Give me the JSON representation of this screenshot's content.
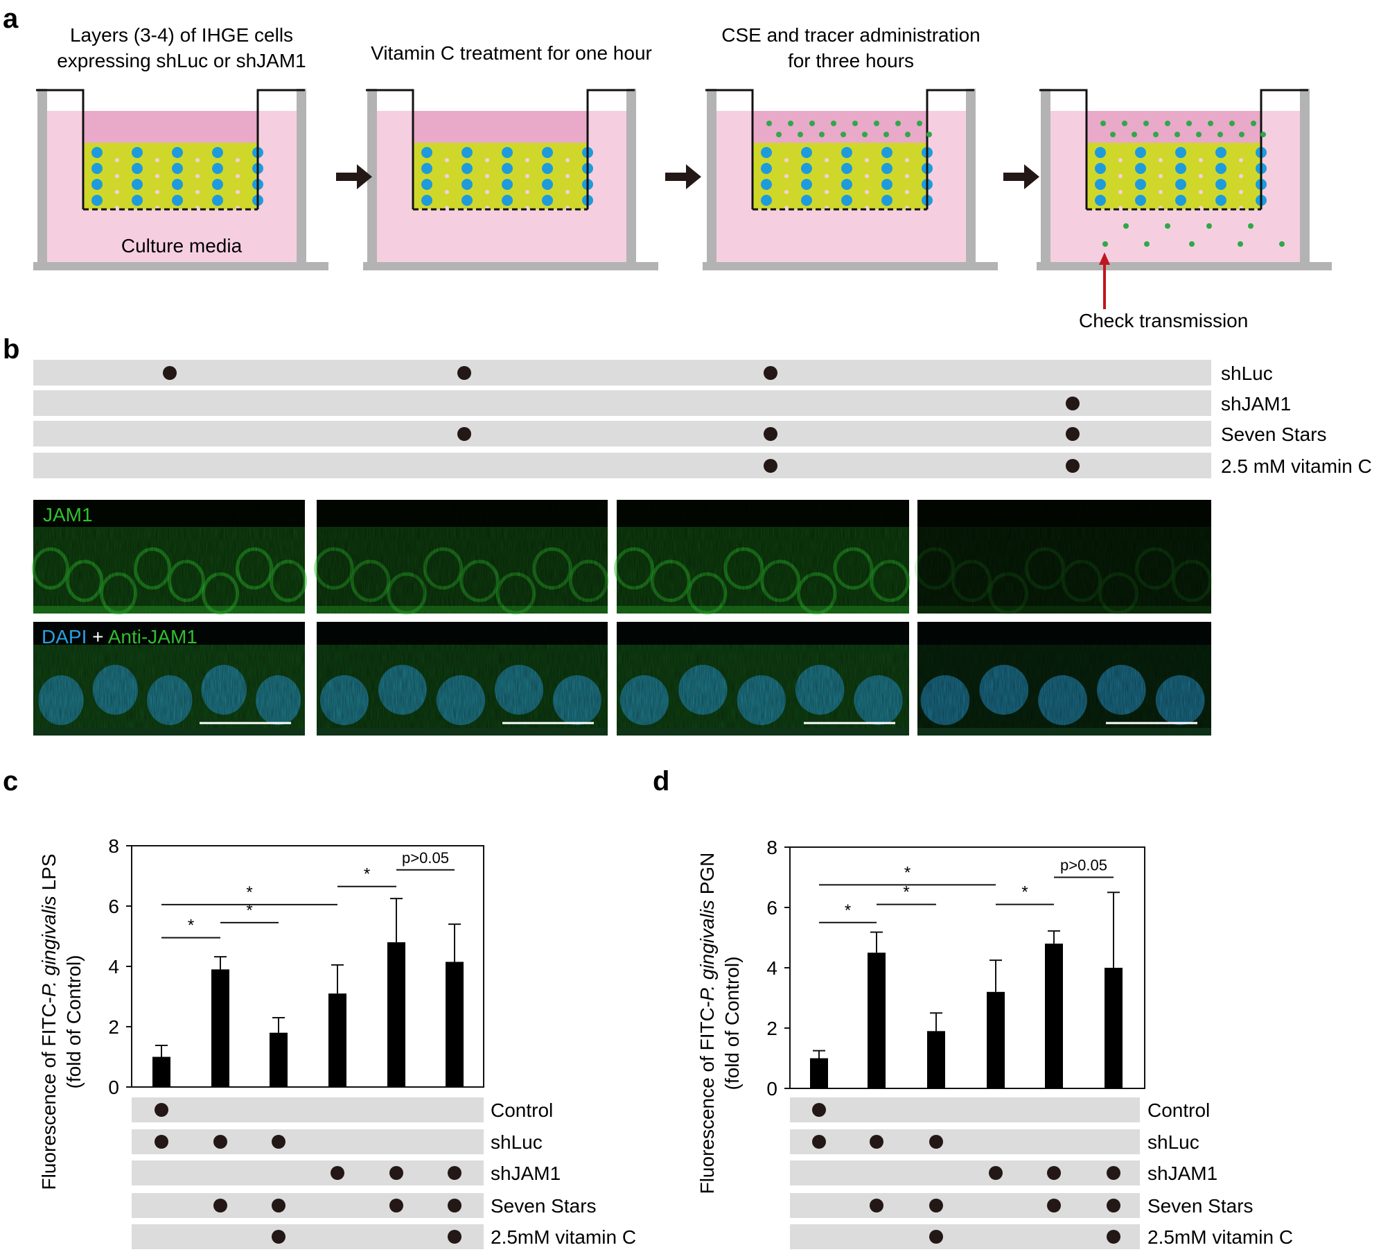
{
  "panel_labels": {
    "a": "a",
    "b": "b",
    "c": "c",
    "d": "d"
  },
  "colors": {
    "media_light": "#f5cfe0",
    "media_dark": "#e9a9c8",
    "cell_layer": "#cfd82a",
    "nucleus": "#1e9bdc",
    "tracer": "#2ea84a",
    "wall": "#b3b3b3",
    "row_bg": "#dcdcdc",
    "dot": "#231815",
    "arrow": "#231815",
    "check_arrow": "#c0161e",
    "micro_jam1": "#30c030",
    "micro_dapi": "#2aa0e0",
    "micro_anti": "#2fbf2f",
    "scale_bar": "#ffffff",
    "bar_fill": "#000000"
  },
  "panel_a": {
    "steps": [
      {
        "caption_lines": [
          "Layers (3-4) of IHGE cells",
          "expressing shLuc or shJAM1"
        ],
        "media_label": "Culture media",
        "tracer_top": false,
        "tracer_bottom": false
      },
      {
        "caption_lines": [
          "Vitamin C treatment for one hour"
        ],
        "media_label": "",
        "tracer_top": false,
        "tracer_bottom": false
      },
      {
        "caption_lines": [
          "CSE and tracer administration",
          "for three hours"
        ],
        "media_label": "",
        "tracer_top": true,
        "tracer_bottom": false
      },
      {
        "caption_lines": [],
        "media_label": "",
        "tracer_top": true,
        "tracer_bottom": true
      }
    ],
    "check_label": "Check transmission",
    "arrow_icon": "right-arrow-icon"
  },
  "panel_b": {
    "rows": [
      {
        "label": "shLuc",
        "marks": [
          true,
          true,
          true,
          false
        ]
      },
      {
        "label": "shJAM1",
        "marks": [
          false,
          false,
          false,
          true
        ]
      },
      {
        "label": "Seven Stars",
        "marks": [
          false,
          true,
          true,
          true
        ]
      },
      {
        "label": "2.5 mM vitamin C",
        "marks": [
          false,
          false,
          true,
          true
        ]
      }
    ],
    "micro_top_label": "JAM1",
    "micro_bottom_label": {
      "dapi": "DAPI",
      "plus": " + ",
      "anti": "Anti-JAM1"
    },
    "micro_intensity": [
      0.95,
      0.85,
      0.9,
      0.35
    ]
  },
  "chart_data": [
    {
      "type": "bar",
      "panel": "c",
      "ylabel_lines": [
        "Fluorescence of FITC-P. gingivalis LPS",
        "(fold of Control)"
      ],
      "ylabel_parts": [
        {
          "pre": "Fluorescence of FITC-",
          "em": "P. gingivalis",
          "post": " LPS"
        },
        {
          "pre": "(fold of Control)",
          "em": "",
          "post": ""
        }
      ],
      "ylim": [
        0,
        8
      ],
      "yticks": [
        "0",
        "2",
        "4",
        "6",
        "8"
      ],
      "values": [
        1.0,
        3.9,
        1.8,
        3.1,
        4.8,
        4.15
      ],
      "errors": [
        0.38,
        0.42,
        0.5,
        0.95,
        1.45,
        1.25
      ],
      "brackets": [
        {
          "from": 0,
          "to": 1,
          "y": 4.95,
          "label": "*"
        },
        {
          "from": 1,
          "to": 2,
          "y": 5.45,
          "label": "*"
        },
        {
          "from": 0,
          "to": 3,
          "y": 6.05,
          "label": "*"
        },
        {
          "from": 3,
          "to": 4,
          "y": 6.65,
          "label": "*"
        },
        {
          "from": 4,
          "to": 5,
          "y": 7.2,
          "label": "p>0.05"
        }
      ],
      "rows": [
        {
          "label": "Control",
          "marks": [
            true,
            false,
            false,
            false,
            false,
            false
          ]
        },
        {
          "label": "shLuc",
          "marks": [
            true,
            true,
            true,
            false,
            false,
            false
          ]
        },
        {
          "label": "shJAM1",
          "marks": [
            false,
            false,
            false,
            true,
            true,
            true
          ]
        },
        {
          "label": "Seven Stars",
          "marks": [
            false,
            true,
            true,
            false,
            true,
            true
          ]
        },
        {
          "label": "2.5mM vitamin C",
          "marks": [
            false,
            false,
            true,
            false,
            false,
            true
          ]
        }
      ],
      "grid": false,
      "legend": "none"
    },
    {
      "type": "bar",
      "panel": "d",
      "ylabel_lines": [
        "Fluorescence of FITC-P. gingivalis PGN",
        "(fold of Control)"
      ],
      "ylabel_parts": [
        {
          "pre": "Fluorescence of FITC-",
          "em": "P. gingivalis",
          "post": " PGN"
        },
        {
          "pre": "(fold of Control)",
          "em": "",
          "post": ""
        }
      ],
      "ylim": [
        0,
        8
      ],
      "yticks": [
        "0",
        "2",
        "4",
        "6",
        "8"
      ],
      "values": [
        1.0,
        4.5,
        1.9,
        3.2,
        4.8,
        4.0
      ],
      "errors": [
        0.25,
        0.68,
        0.6,
        1.05,
        0.42,
        2.5
      ],
      "brackets": [
        {
          "from": 0,
          "to": 1,
          "y": 5.5,
          "label": "*"
        },
        {
          "from": 1,
          "to": 2,
          "y": 6.1,
          "label": "*"
        },
        {
          "from": 0,
          "to": 3,
          "y": 6.75,
          "label": "*"
        },
        {
          "from": 3,
          "to": 4,
          "y": 6.1,
          "label": "*"
        },
        {
          "from": 4,
          "to": 5,
          "y": 7.0,
          "label": "p>0.05"
        }
      ],
      "rows": [
        {
          "label": "Control",
          "marks": [
            true,
            false,
            false,
            false,
            false,
            false
          ]
        },
        {
          "label": "shLuc",
          "marks": [
            true,
            true,
            true,
            false,
            false,
            false
          ]
        },
        {
          "label": "shJAM1",
          "marks": [
            false,
            false,
            false,
            true,
            true,
            true
          ]
        },
        {
          "label": "Seven Stars",
          "marks": [
            false,
            true,
            true,
            false,
            true,
            true
          ]
        },
        {
          "label": "2.5mM vitamin C",
          "marks": [
            false,
            false,
            true,
            false,
            false,
            true
          ]
        }
      ],
      "grid": false,
      "legend": "none"
    }
  ]
}
